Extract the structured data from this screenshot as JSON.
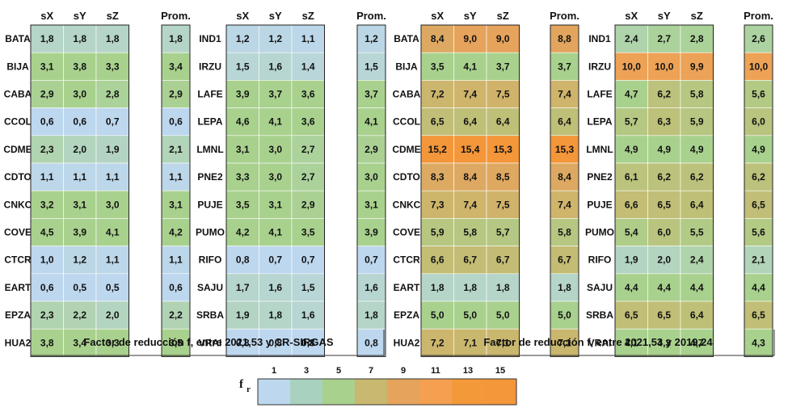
{
  "chart_data": {
    "type": "heatmap",
    "columns": [
      "sX",
      "sY",
      "sZ"
    ],
    "average_column": "Prom.",
    "color_scale": {
      "label": "f",
      "label_subscript": "r",
      "ticks": [
        "1",
        "3",
        "5",
        "7",
        "9",
        "11",
        "13",
        "15"
      ],
      "colors": [
        "#bdd7ee",
        "#a9d18e",
        "#a9d18e",
        "#c9b86f",
        "#e6a35c",
        "#f4a050",
        "#f4993a",
        "#f4963a"
      ]
    },
    "panels": [
      {
        "caption": "Factor de reducción f, entre 2021,53 y CR-SIRGAS",
        "blocks": [
          {
            "stations": [
              "BATA",
              "BIJA",
              "CABA",
              "CCOL",
              "CDME",
              "CDTO",
              "CNKC",
              "COVE",
              "CTCR",
              "EART",
              "EPZA",
              "HUA2"
            ],
            "values": [
              [
                "1,8",
                "1,8",
                "1,8"
              ],
              [
                "3,1",
                "3,8",
                "3,3"
              ],
              [
                "2,9",
                "3,0",
                "2,8"
              ],
              [
                "0,6",
                "0,6",
                "0,7"
              ],
              [
                "2,3",
                "2,0",
                "1,9"
              ],
              [
                "1,1",
                "1,1",
                "1,1"
              ],
              [
                "3,2",
                "3,1",
                "3,0"
              ],
              [
                "4,5",
                "3,9",
                "4,1"
              ],
              [
                "1,0",
                "1,2",
                "1,1"
              ],
              [
                "0,6",
                "0,5",
                "0,5"
              ],
              [
                "2,3",
                "2,2",
                "2,0"
              ],
              [
                "3,8",
                "3,4",
                "3,3"
              ]
            ],
            "prom": [
              "1,8",
              "3,4",
              "2,9",
              "0,6",
              "2,1",
              "1,1",
              "3,1",
              "4,2",
              "1,1",
              "0,6",
              "2,2",
              "3,5"
            ]
          },
          {
            "stations": [
              "IND1",
              "IRZU",
              "LAFE",
              "LEPA",
              "LMNL",
              "PNE2",
              "PUJE",
              "PUMO",
              "RIFO",
              "SAJU",
              "SRBA",
              "VRAI"
            ],
            "values": [
              [
                "1,2",
                "1,2",
                "1,1"
              ],
              [
                "1,5",
                "1,6",
                "1,4"
              ],
              [
                "3,9",
                "3,7",
                "3,6"
              ],
              [
                "4,6",
                "4,1",
                "3,6"
              ],
              [
                "3,1",
                "3,0",
                "2,7"
              ],
              [
                "3,3",
                "3,0",
                "2,7"
              ],
              [
                "3,5",
                "3,1",
                "2,9"
              ],
              [
                "4,2",
                "4,1",
                "3,5"
              ],
              [
                "0,8",
                "0,7",
                "0,7"
              ],
              [
                "1,7",
                "1,6",
                "1,5"
              ],
              [
                "1,9",
                "1,8",
                "1,6"
              ],
              [
                "0,8",
                "0,8",
                "0,8"
              ]
            ],
            "prom": [
              "1,2",
              "1,5",
              "3,7",
              "4,1",
              "2,9",
              "3,0",
              "3,1",
              "3,9",
              "0,7",
              "1,6",
              "1,8",
              "0,8"
            ]
          }
        ]
      },
      {
        "caption": "Factor de reducción f, entre 2021,53 y 2019,24",
        "blocks": [
          {
            "stations": [
              "BATA",
              "BIJA",
              "CABA",
              "CCOL",
              "CDME",
              "CDTO",
              "CNKC",
              "COVE",
              "CTCR",
              "EART",
              "EPZA",
              "HUA2"
            ],
            "values": [
              [
                "8,4",
                "9,0",
                "9,0"
              ],
              [
                "3,5",
                "4,1",
                "3,7"
              ],
              [
                "7,2",
                "7,4",
                "7,5"
              ],
              [
                "6,5",
                "6,4",
                "6,4"
              ],
              [
                "15,2",
                "15,4",
                "15,3"
              ],
              [
                "8,3",
                "8,4",
                "8,5"
              ],
              [
                "7,3",
                "7,4",
                "7,5"
              ],
              [
                "5,9",
                "5,8",
                "5,7"
              ],
              [
                "6,6",
                "6,7",
                "6,7"
              ],
              [
                "1,8",
                "1,8",
                "1,8"
              ],
              [
                "5,0",
                "5,0",
                "5,0"
              ],
              [
                "7,2",
                "7,1",
                "7,1"
              ]
            ],
            "prom": [
              "8,8",
              "3,7",
              "7,4",
              "6,4",
              "15,3",
              "8,4",
              "7,4",
              "5,8",
              "6,7",
              "1,8",
              "5,0",
              "7,1"
            ]
          },
          {
            "stations": [
              "IND1",
              "IRZU",
              "LAFE",
              "LEPA",
              "LMNL",
              "PNE2",
              "PUJE",
              "PUMO",
              "RIFO",
              "SAJU",
              "SRBA",
              "VRAI"
            ],
            "values": [
              [
                "2,4",
                "2,7",
                "2,8"
              ],
              [
                "10,0",
                "10,0",
                "9,9"
              ],
              [
                "4,7",
                "6,2",
                "5,8"
              ],
              [
                "5,7",
                "6,3",
                "5,9"
              ],
              [
                "4,9",
                "4,9",
                "4,9"
              ],
              [
                "6,1",
                "6,2",
                "6,2"
              ],
              [
                "6,6",
                "6,5",
                "6,4"
              ],
              [
                "5,4",
                "6,0",
                "5,5"
              ],
              [
                "1,9",
                "2,0",
                "2,4"
              ],
              [
                "4,4",
                "4,4",
                "4,4"
              ],
              [
                "6,5",
                "6,5",
                "6,4"
              ],
              [
                "4,1",
                "4,3",
                "4,7"
              ]
            ],
            "prom": [
              "2,6",
              "10,0",
              "5,6",
              "6,0",
              "4,9",
              "6,2",
              "6,5",
              "5,6",
              "2,1",
              "4,4",
              "6,5",
              "4,3"
            ]
          }
        ]
      }
    ]
  }
}
